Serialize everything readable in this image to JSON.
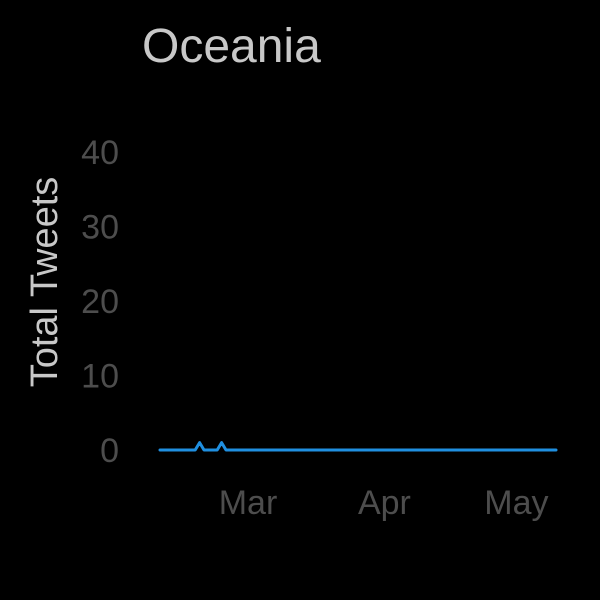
{
  "chart_data": {
    "type": "line",
    "title": "Oceania",
    "xlabel": "",
    "ylabel": "Total Tweets",
    "x_tick_labels": [
      "Mar",
      "Apr",
      "May"
    ],
    "y_ticks": [
      0,
      10,
      20,
      30,
      40
    ],
    "ylim": [
      0,
      40
    ],
    "xlim": [
      "2020-02-10",
      "2020-05-10"
    ],
    "grid": false,
    "legend": "none",
    "line_color": "#1f8fe0",
    "series": [
      {
        "x": [
          "2020-02-10",
          "2020-02-18",
          "2020-02-19",
          "2020-02-20",
          "2020-02-23",
          "2020-02-24",
          "2020-02-25",
          "2020-05-10"
        ],
        "y": [
          0,
          0,
          1,
          0,
          0,
          1,
          0,
          0
        ]
      }
    ]
  }
}
